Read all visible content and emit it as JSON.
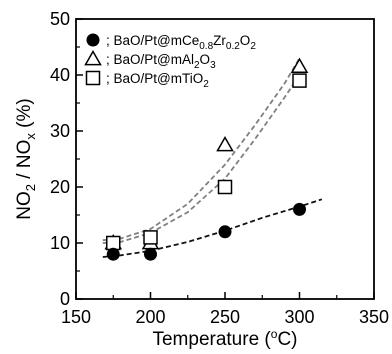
{
  "chart_data": {
    "type": "scatter",
    "xlabel": {
      "main": "Temperature (",
      "sup": "o",
      "tail": "C)"
    },
    "ylabel": {
      "p1": "NO",
      "s1": "2",
      "p2": " / NO",
      "s2": "x",
      "p3": " (%)"
    },
    "xlim": [
      150,
      350
    ],
    "ylim": [
      0,
      50
    ],
    "xticks": [
      150,
      200,
      250,
      300,
      350
    ],
    "yticks": [
      0,
      10,
      20,
      30,
      40,
      50
    ],
    "grid": false,
    "legend_position": "top-left",
    "series": [
      {
        "name": "; BaO/Pt@mCe0.8Zr0.2O2",
        "name_parts": [
          {
            "t": "; BaO/Pt@mCe",
            "sub": false
          },
          {
            "t": "0.8",
            "sub": true
          },
          {
            "t": "Zr",
            "sub": false
          },
          {
            "t": "0.2",
            "sub": true
          },
          {
            "t": "O",
            "sub": false
          },
          {
            "t": "2",
            "sub": true
          }
        ],
        "marker": "filled-circle",
        "x": [
          175,
          200,
          250,
          300
        ],
        "y": [
          8,
          8,
          12,
          16
        ],
        "trend_x": [
          168,
          180,
          200,
          225,
          250,
          275,
          300,
          315
        ],
        "trend_y": [
          7.5,
          7.8,
          8.6,
          10.2,
          12.2,
          14.5,
          16.5,
          17.8
        ]
      },
      {
        "name": "; BaO/Pt@mAl2O3",
        "name_parts": [
          {
            "t": "; BaO/Pt@mAl",
            "sub": false
          },
          {
            "t": "2",
            "sub": true
          },
          {
            "t": "O",
            "sub": false
          },
          {
            "t": "3",
            "sub": true
          }
        ],
        "marker": "open-triangle",
        "x": [
          175,
          200,
          250,
          300
        ],
        "y": [
          10,
          10,
          27.5,
          41.5
        ],
        "trend_x": [
          168,
          180,
          200,
          225,
          250,
          270,
          290,
          300
        ],
        "trend_y": [
          10.5,
          10.8,
          12.5,
          17,
          24,
          31,
          38.5,
          43
        ]
      },
      {
        "name": "; BaO/Pt@mTiO2",
        "name_parts": [
          {
            "t": "; BaO/Pt@mTiO",
            "sub": false
          },
          {
            "t": "2",
            "sub": true
          }
        ],
        "marker": "open-square",
        "x": [
          175,
          200,
          250,
          300
        ],
        "y": [
          10,
          11,
          20,
          39
        ],
        "trend_x": [
          168,
          180,
          200,
          225,
          250,
          270,
          290,
          300
        ],
        "trend_y": [
          10,
          10.2,
          11.8,
          15.5,
          21.5,
          28.5,
          36,
          40
        ]
      }
    ]
  },
  "colors": {
    "markers": "#000000",
    "trend_dark": "#111111",
    "trend_gray": "#808080"
  }
}
